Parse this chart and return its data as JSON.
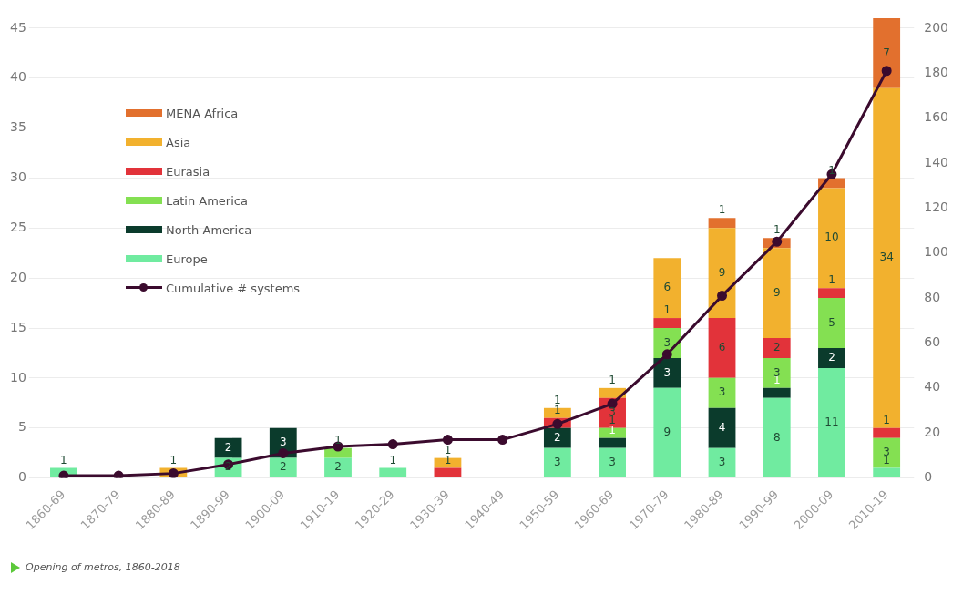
{
  "chart_data": {
    "type": "bar",
    "stacked": true,
    "categories": [
      "1860-69",
      "1870-79",
      "1880-89",
      "1890-99",
      "1900-09",
      "1910-19",
      "1920-29",
      "1930-39",
      "1940-49",
      "1950-59",
      "1960-69",
      "1970-79",
      "1980-89",
      "1990-99",
      "2000-09",
      "2010-19"
    ],
    "series": [
      {
        "name": "Europe",
        "color": "#70eba0",
        "values": [
          1,
          null,
          null,
          2,
          2,
          2,
          1,
          null,
          null,
          3,
          3,
          9,
          3,
          8,
          11,
          1
        ],
        "value_labels": [
          "1",
          null,
          null,
          "2",
          "2",
          "2",
          "1",
          null,
          null,
          "3",
          "3",
          "9",
          "3",
          "8",
          "11",
          "1"
        ]
      },
      {
        "name": "North America",
        "color": "#0b3b2c",
        "values": [
          null,
          null,
          null,
          2,
          3,
          null,
          null,
          null,
          null,
          2,
          1,
          3,
          4,
          1,
          2,
          null
        ],
        "value_labels": [
          null,
          null,
          null,
          "2",
          "3",
          null,
          null,
          null,
          null,
          "2",
          "1",
          "3",
          "4",
          "1",
          "2",
          null
        ]
      },
      {
        "name": "Latin America",
        "color": "#84e052",
        "values": [
          null,
          null,
          null,
          null,
          null,
          1,
          null,
          null,
          null,
          null,
          1,
          3,
          3,
          3,
          5,
          3
        ],
        "value_labels": [
          null,
          null,
          null,
          null,
          null,
          "1",
          null,
          null,
          null,
          null,
          "1",
          "3",
          "3",
          "3",
          "5",
          "3"
        ]
      },
      {
        "name": "Eurasia",
        "color": "#e2333a",
        "values": [
          null,
          null,
          null,
          null,
          null,
          null,
          null,
          1,
          null,
          1,
          3,
          1,
          6,
          2,
          1,
          1
        ],
        "value_labels": [
          null,
          null,
          null,
          null,
          null,
          null,
          null,
          "1",
          null,
          "1",
          "3",
          "1",
          "6",
          "2",
          "1",
          "1"
        ]
      },
      {
        "name": "Asia",
        "color": "#f2b12e",
        "values": [
          null,
          null,
          1,
          null,
          null,
          null,
          null,
          1,
          null,
          1,
          1,
          6,
          9,
          9,
          10,
          34
        ],
        "value_labels": [
          null,
          null,
          "1",
          null,
          null,
          null,
          null,
          "1",
          null,
          "1",
          "1",
          "6",
          "9",
          "9",
          "10",
          "34"
        ]
      },
      {
        "name": "MENA Africa",
        "color": "#e2702e",
        "values": [
          null,
          null,
          null,
          null,
          null,
          null,
          null,
          null,
          null,
          null,
          null,
          null,
          1,
          1,
          1,
          7
        ],
        "value_labels": [
          null,
          null,
          null,
          null,
          null,
          null,
          null,
          null,
          null,
          null,
          null,
          null,
          "1",
          "1",
          "1",
          "7"
        ]
      },
      {
        "name": "Cumulative # systems",
        "type": "line",
        "axis": "y2",
        "color": "#3b0b2e",
        "marker": "circle",
        "values": [
          1,
          1,
          2,
          6,
          11,
          14,
          15,
          17,
          17,
          24,
          33,
          55,
          81,
          105,
          135,
          181
        ]
      }
    ],
    "ylim": [
      0,
      46
    ],
    "yticks": [
      0,
      5,
      10,
      15,
      20,
      25,
      30,
      35,
      40,
      45
    ],
    "y2lim": [
      0,
      204.4
    ],
    "y2ticks": [
      0,
      20,
      40,
      60,
      80,
      100,
      120,
      140,
      160,
      180,
      200
    ],
    "grid": "y",
    "legend": "top left",
    "annotations": [
      "Opening of metros, 1860-2018"
    ]
  }
}
